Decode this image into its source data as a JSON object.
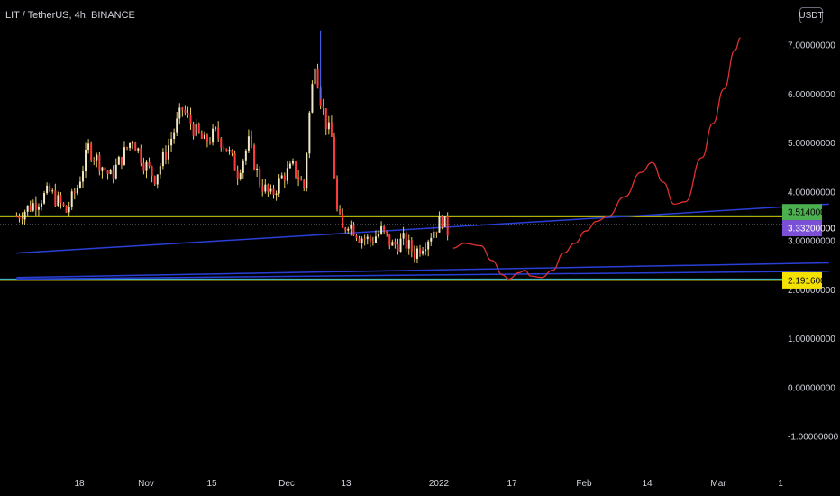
{
  "header": {
    "title": "LIT / TetherUS, 4h, BINANCE",
    "currency_button": "USDT"
  },
  "colors": {
    "background": "#000000",
    "candle_up": "#f0e8c8",
    "candle_down": "#ff3b3b",
    "candle_wick": "#e8d060",
    "trendline": "#2a3fd8",
    "projection": "#e03030",
    "level_green": "#4caf50",
    "level_yellow": "#f5e100",
    "level_purple": "#7b4fd6",
    "level_cyan": "#4dd0e1",
    "dotted_line": "#8a8fa0",
    "axis_text": "#d1d4dc"
  },
  "chart_data": {
    "type": "candlestick",
    "pair": "LIT / TetherUS",
    "interval": "4h",
    "exchange": "BINANCE",
    "y_axis": {
      "ticks": [
        "7.00000000",
        "6.00000000",
        "5.00000000",
        "4.00000000",
        "3.00000000",
        "2.00000000",
        "1.00000000",
        "0.00000000",
        "-1.00000000"
      ],
      "tick_values": [
        7,
        6,
        5,
        4,
        3,
        2,
        1,
        0,
        -1
      ],
      "ylim": [
        -1.7,
        7.85
      ]
    },
    "x_axis": {
      "ticks": [
        "18",
        "Nov",
        "15",
        "Dec",
        "13",
        "2022",
        "17",
        "Feb",
        "14",
        "Mar",
        "1"
      ]
    },
    "price_tags": [
      {
        "label": "3.51400000",
        "value": 3.514,
        "color": "#4caf50",
        "text_color": "#000000"
      },
      {
        "label": "3.33200000",
        "value": 3.332,
        "color": "#7b4fd6",
        "text_color": "#ffffff"
      },
      {
        "label": "2.19160000",
        "value": 2.1916,
        "color": "#f5e100",
        "text_color": "#000000"
      }
    ],
    "horizontal_levels": [
      {
        "value": 3.514,
        "color": "#4caf50"
      },
      {
        "value": 3.495,
        "color": "#f5e100"
      },
      {
        "value": 3.332,
        "color": "#8a8fa0",
        "style": "dotted"
      },
      {
        "value": 2.22,
        "color": "#4dd0e1"
      },
      {
        "value": 2.1916,
        "color": "#f5e100"
      }
    ],
    "trendlines": [
      {
        "from_day": 0,
        "from_price": 2.75,
        "to_day": 147,
        "to_price": 3.75
      },
      {
        "from_day": 0,
        "from_price": 2.25,
        "to_day": 147,
        "to_price": 2.55
      },
      {
        "from_day": 0,
        "from_price": 2.22,
        "to_day": 147,
        "to_price": 2.38
      }
    ],
    "price_path": [
      [
        0,
        3.5
      ],
      [
        3,
        3.75
      ],
      [
        6,
        4.0
      ],
      [
        9,
        3.6
      ],
      [
        11,
        4.1
      ],
      [
        13,
        4.9
      ],
      [
        15,
        4.6
      ],
      [
        17,
        4.3
      ],
      [
        19,
        4.7
      ],
      [
        21,
        5.1
      ],
      [
        23,
        4.6
      ],
      [
        25,
        4.3
      ],
      [
        27,
        4.8
      ],
      [
        29,
        5.4
      ],
      [
        30,
        5.7
      ],
      [
        32,
        5.3
      ],
      [
        34,
        5.0
      ],
      [
        36,
        5.2
      ],
      [
        38,
        4.9
      ],
      [
        40,
        4.4
      ],
      [
        42,
        5.0
      ],
      [
        44,
        4.2
      ],
      [
        46,
        3.9
      ],
      [
        48,
        4.3
      ],
      [
        50,
        4.5
      ],
      [
        52,
        4.1
      ],
      [
        53,
        5.6
      ],
      [
        54,
        6.7
      ],
      [
        55,
        5.9
      ],
      [
        56,
        5.4
      ],
      [
        57,
        5.1
      ],
      [
        58,
        3.6
      ],
      [
        59,
        3.2
      ],
      [
        60,
        3.4
      ],
      [
        62,
        3.1
      ],
      [
        64,
        3.0
      ],
      [
        66,
        3.2
      ],
      [
        68,
        2.9
      ],
      [
        70,
        3.0
      ],
      [
        72,
        2.75
      ],
      [
        74,
        3.0
      ],
      [
        76,
        3.3
      ],
      [
        77,
        3.45
      ],
      [
        78,
        3.2
      ]
    ],
    "spikes": [
      {
        "day": 54,
        "high": 7.85
      },
      {
        "day": 55,
        "high": 7.3
      }
    ],
    "projection": [
      [
        79,
        2.85
      ],
      [
        81,
        2.95
      ],
      [
        84,
        2.9
      ],
      [
        86,
        2.6
      ],
      [
        88,
        2.3
      ],
      [
        89,
        2.22
      ],
      [
        91,
        2.35
      ],
      [
        92,
        2.4
      ],
      [
        93,
        2.28
      ],
      [
        95,
        2.25
      ],
      [
        97,
        2.4
      ],
      [
        99,
        2.75
      ],
      [
        101,
        2.95
      ],
      [
        103,
        3.2
      ],
      [
        105,
        3.4
      ],
      [
        107,
        3.5
      ],
      [
        110,
        3.9
      ],
      [
        113,
        4.4
      ],
      [
        115,
        4.6
      ],
      [
        117,
        4.2
      ],
      [
        119,
        3.75
      ],
      [
        121,
        3.8
      ],
      [
        124,
        4.7
      ],
      [
        126,
        5.4
      ],
      [
        128,
        6.1
      ],
      [
        130,
        6.9
      ],
      [
        131,
        7.15
      ]
    ]
  }
}
